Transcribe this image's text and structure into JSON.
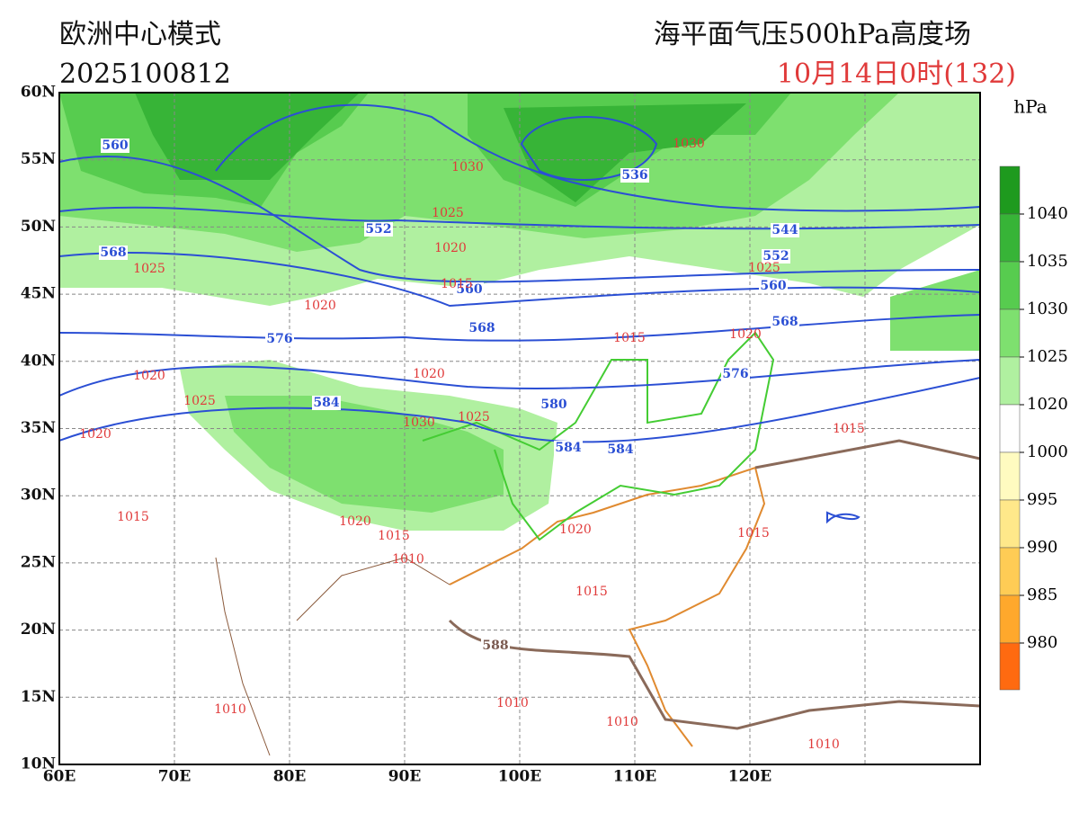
{
  "header": {
    "model": "欧洲中心模式",
    "init_time": "2025100812",
    "field": "海平面气压500hPa高度场",
    "valid_time": "10月14日0时(132)"
  },
  "axes": {
    "lon_labels": [
      "60E",
      "70E",
      "80E",
      "90E",
      "100E",
      "110E",
      "120E"
    ],
    "lat_labels": [
      "60N",
      "55N",
      "50N",
      "45N",
      "40N",
      "35N",
      "30N",
      "25N",
      "20N",
      "15N",
      "10N"
    ]
  },
  "colorbar": {
    "unit": "hPa",
    "ticks": [
      1040,
      1035,
      1030,
      1025,
      1020,
      1000,
      995,
      990,
      985,
      980
    ],
    "colors": [
      "#1e9a1e",
      "#37b437",
      "#57cc4f",
      "#7ee06f",
      "#b0f0a0",
      "#ffffff",
      "#fffbc0",
      "#ffe88a",
      "#ffcc55",
      "#ffa82c",
      "#ff6a10"
    ]
  },
  "height_labels": [
    560,
    568,
    552,
    560,
    568,
    576,
    584,
    580,
    584,
    584,
    576,
    568,
    560,
    552,
    544,
    536,
    588
  ],
  "pressure_labels": [
    1030,
    1025,
    1020,
    1025,
    1020,
    1015,
    1020,
    1025,
    1020,
    1030,
    1025,
    1020,
    1015,
    1020,
    1015,
    1015,
    1020,
    1015,
    1010,
    1020,
    1015,
    1015,
    1010,
    1010,
    1010,
    1010,
    1030,
    1025
  ]
}
